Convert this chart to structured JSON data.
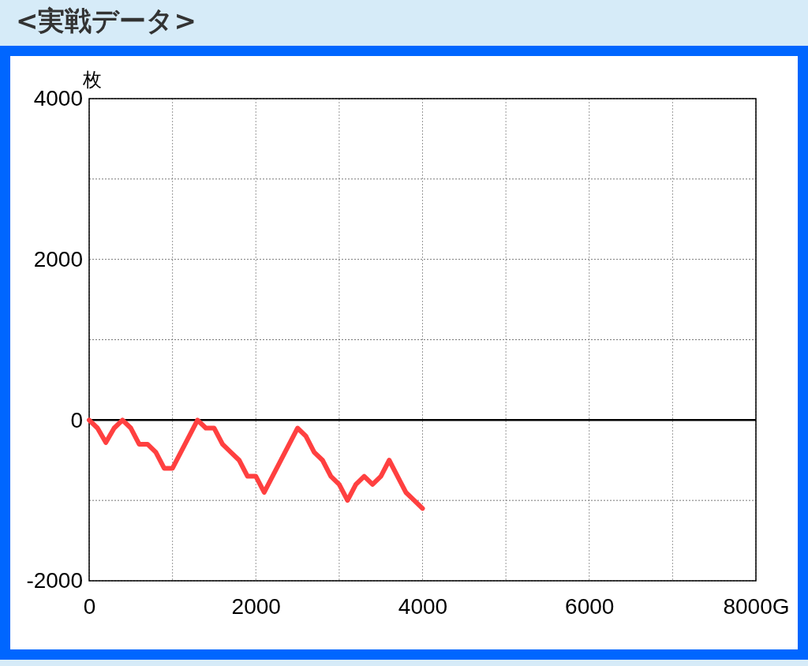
{
  "chart_data": {
    "type": "line",
    "title": "<実戦データ>",
    "ylabel": "枚",
    "x": [
      0,
      100,
      200,
      300,
      400,
      500,
      600,
      700,
      800,
      900,
      1000,
      1300,
      1400,
      1500,
      1600,
      1700,
      1800,
      1900,
      2000,
      2100,
      2500,
      2600,
      2700,
      2800,
      2900,
      3000,
      3100,
      3200,
      3300,
      3400,
      3500,
      3600,
      3700,
      3800,
      3900,
      4000
    ],
    "series": [
      {
        "color": "#ff4040",
        "values": [
          0,
          -100,
          -280,
          -100,
          0,
          -100,
          -300,
          -300,
          -400,
          -600,
          -600,
          0,
          -100,
          -100,
          -300,
          -400,
          -500,
          -700,
          -700,
          -900,
          -100,
          -200,
          -400,
          -500,
          -700,
          -800,
          -1000,
          -800,
          -700,
          -800,
          -700,
          -500,
          -700,
          -900,
          -1000,
          -1100
        ]
      }
    ],
    "xlim": [
      0,
      8000
    ],
    "xticks": [
      0,
      {
        "value": 1000,
        "label": null
      },
      2000,
      {
        "value": 3000,
        "label": null
      },
      4000,
      {
        "value": 5000,
        "label": null
      },
      6000,
      {
        "value": 7000,
        "label": null
      },
      {
        "value": 8000,
        "label": "8000G"
      }
    ],
    "ylim": [
      -2000,
      4000
    ],
    "yticks": [
      -2000,
      {
        "value": -1000,
        "label": null
      },
      0,
      {
        "value": 1000,
        "label": null
      },
      2000,
      {
        "value": 3000,
        "label": null
      },
      4000
    ],
    "ref_lines": [
      {
        "axis": "y",
        "value": 0,
        "color": "#000000",
        "line_style": "solid"
      }
    ],
    "grid": true,
    "marker": "none",
    "line_style": "solid",
    "legend": false
  }
}
